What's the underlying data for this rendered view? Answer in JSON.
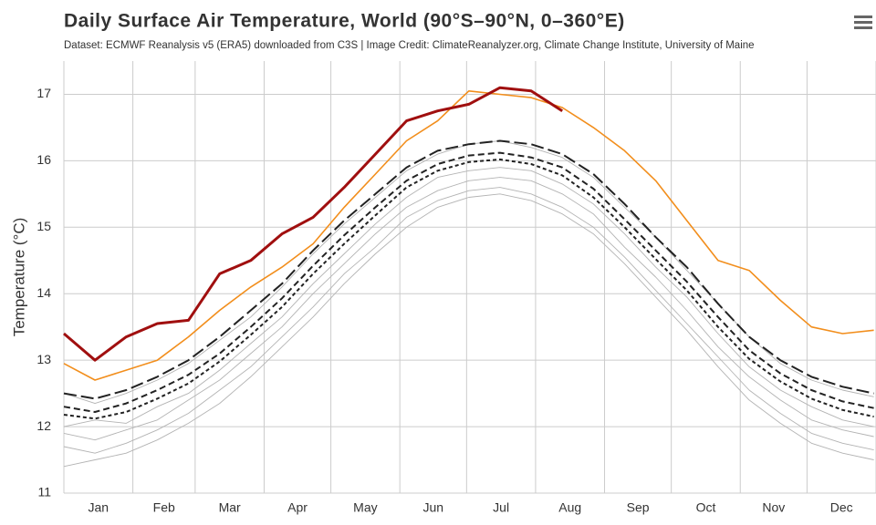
{
  "chart_data": {
    "type": "line",
    "title": "Daily Surface Air Temperature, World (90°S–90°N, 0–360°E)",
    "subtitle": "Dataset: ECMWF Reanalysis v5 (ERA5) downloaded from C3S | Image Credit: ClimateReanalyzer.org, Climate Change Institute, University of Maine",
    "y_label": "Temperature (°C)",
    "x": [
      0,
      14,
      28,
      42,
      56,
      70,
      84,
      98,
      112,
      126,
      140,
      154,
      168,
      182,
      196,
      210,
      224,
      238,
      252,
      266,
      280,
      294,
      308,
      322,
      336,
      350,
      364
    ],
    "xlim": [
      0,
      365
    ],
    "xticks": [
      {
        "value": 15.5,
        "label": "Jan"
      },
      {
        "value": 45,
        "label": "Feb"
      },
      {
        "value": 74.5,
        "label": "Mar"
      },
      {
        "value": 105,
        "label": "Apr"
      },
      {
        "value": 135.5,
        "label": "May"
      },
      {
        "value": 166,
        "label": "Jun"
      },
      {
        "value": 196.5,
        "label": "Jul"
      },
      {
        "value": 227.5,
        "label": "Aug"
      },
      {
        "value": 258,
        "label": "Sep"
      },
      {
        "value": 288.5,
        "label": "Oct"
      },
      {
        "value": 319,
        "label": "Nov"
      },
      {
        "value": 349.5,
        "label": "Dec"
      }
    ],
    "xgrid": [
      0,
      31,
      59,
      90,
      120,
      151,
      181,
      212,
      243,
      273,
      304,
      334,
      365
    ],
    "ylim": [
      11,
      17.5
    ],
    "yticks": [
      11,
      12,
      13,
      14,
      15,
      16,
      17
    ],
    "grid": true,
    "series": [
      {
        "color": "#b3b3b3",
        "line_style": "thin",
        "values": [
          11.9,
          11.8,
          11.95,
          12.1,
          12.4,
          12.7,
          13.1,
          13.5,
          14.0,
          14.45,
          14.9,
          15.3,
          15.55,
          15.7,
          15.75,
          15.7,
          15.5,
          15.2,
          14.7,
          14.25,
          13.75,
          13.2,
          12.75,
          12.4,
          12.1,
          11.95,
          11.85
        ]
      },
      {
        "color": "#b3b3b3",
        "line_style": "thin",
        "values": [
          11.7,
          11.6,
          11.75,
          11.95,
          12.2,
          12.55,
          12.9,
          13.35,
          13.8,
          14.3,
          14.7,
          15.15,
          15.4,
          15.55,
          15.6,
          15.5,
          15.3,
          15.0,
          14.55,
          14.05,
          13.55,
          13.05,
          12.55,
          12.2,
          11.9,
          11.75,
          11.65
        ]
      },
      {
        "color": "#b3b3b3",
        "line_style": "thin",
        "values": [
          12.5,
          12.35,
          12.5,
          12.7,
          12.95,
          13.3,
          13.65,
          14.1,
          14.6,
          15.05,
          15.45,
          15.85,
          16.1,
          16.25,
          16.3,
          16.2,
          16.05,
          15.75,
          15.3,
          14.85,
          14.35,
          13.85,
          13.35,
          12.95,
          12.7,
          12.55,
          12.45
        ]
      },
      {
        "color": "#b3b3b3",
        "line_style": "thin",
        "values": [
          12.0,
          12.1,
          12.05,
          12.3,
          12.5,
          12.85,
          13.25,
          13.65,
          14.15,
          14.6,
          15.05,
          15.45,
          15.75,
          15.85,
          15.9,
          15.85,
          15.65,
          15.35,
          14.9,
          14.4,
          13.95,
          13.4,
          12.9,
          12.55,
          12.3,
          12.1,
          12.0
        ]
      },
      {
        "color": "#b3b3b3",
        "line_style": "thin",
        "values": [
          11.4,
          11.5,
          11.6,
          11.8,
          12.05,
          12.35,
          12.75,
          13.2,
          13.65,
          14.15,
          14.6,
          15.0,
          15.3,
          15.45,
          15.5,
          15.4,
          15.2,
          14.9,
          14.45,
          13.95,
          13.45,
          12.9,
          12.4,
          12.05,
          11.75,
          11.6,
          11.5
        ]
      },
      {
        "color": "#222222",
        "line_style": "short-dash",
        "values": [
          12.18,
          12.12,
          12.22,
          12.42,
          12.65,
          12.98,
          13.38,
          13.8,
          14.3,
          14.75,
          15.18,
          15.6,
          15.85,
          15.98,
          16.02,
          15.95,
          15.78,
          15.45,
          15.0,
          14.52,
          14.05,
          13.5,
          13.02,
          12.68,
          12.42,
          12.25,
          12.15
        ]
      },
      {
        "color": "#222222",
        "line_style": "dash",
        "values": [
          12.3,
          12.22,
          12.35,
          12.55,
          12.78,
          13.1,
          13.5,
          13.93,
          14.42,
          14.88,
          15.3,
          15.7,
          15.95,
          16.08,
          16.12,
          16.05,
          15.9,
          15.58,
          15.12,
          14.65,
          14.18,
          13.65,
          13.15,
          12.8,
          12.55,
          12.38,
          12.28
        ]
      },
      {
        "color": "#222222",
        "line_style": "long-dash",
        "values": [
          12.5,
          12.42,
          12.55,
          12.75,
          13.0,
          13.35,
          13.75,
          14.15,
          14.65,
          15.1,
          15.5,
          15.9,
          16.15,
          16.25,
          16.3,
          16.25,
          16.1,
          15.8,
          15.35,
          14.85,
          14.4,
          13.85,
          13.35,
          13.0,
          12.75,
          12.6,
          12.5
        ]
      },
      {
        "color": "#f28e1c",
        "line_style": "medium",
        "values": [
          12.95,
          12.7,
          12.85,
          13.0,
          13.35,
          13.75,
          14.1,
          14.4,
          14.75,
          15.3,
          15.8,
          16.3,
          16.6,
          17.05,
          17.0,
          16.95,
          16.8,
          16.5,
          16.15,
          15.7,
          15.1,
          14.5,
          14.35,
          13.9,
          13.5,
          13.4,
          13.45
        ]
      },
      {
        "color": "#a00f0f",
        "line_style": "bold",
        "values": [
          13.4,
          13.0,
          13.35,
          13.55,
          13.6,
          14.3,
          14.5,
          14.9,
          15.15,
          15.6,
          16.1,
          16.6,
          16.75,
          16.85,
          17.1,
          17.05,
          16.75,
          null,
          null,
          null,
          null,
          null,
          null,
          null,
          null,
          null,
          null
        ]
      }
    ]
  }
}
